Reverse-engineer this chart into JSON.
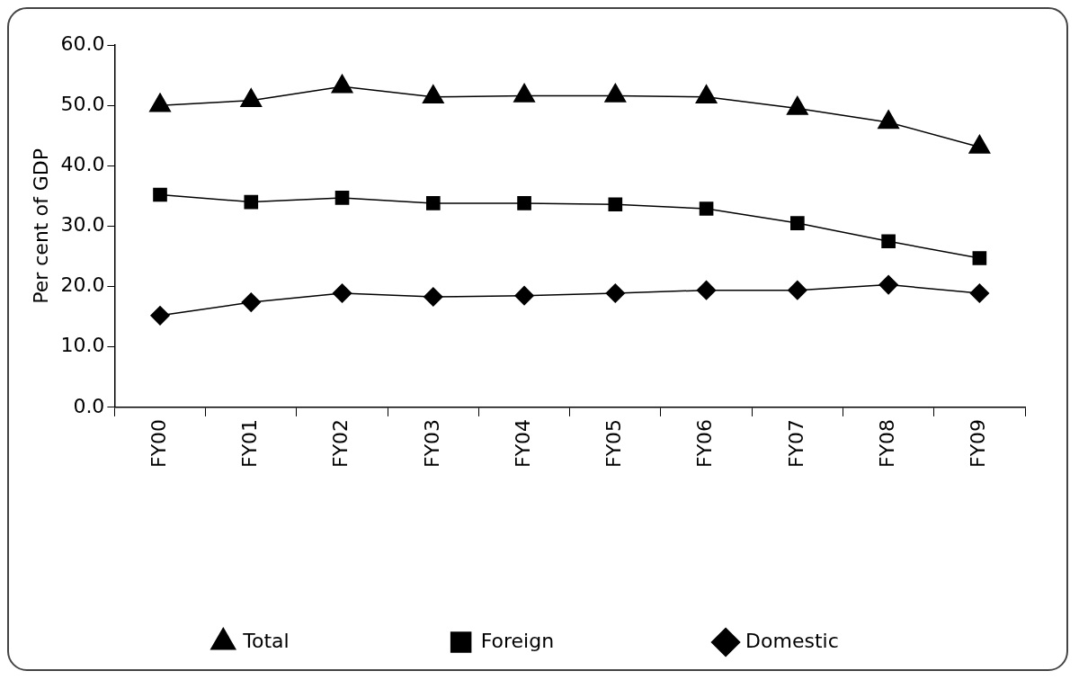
{
  "chart_data": {
    "type": "line",
    "ylabel": "Per cent of GDP",
    "categories": [
      "FY00",
      "FY01",
      "FY02",
      "FY03",
      "FY04",
      "FY05",
      "FY06",
      "FY07",
      "FY08",
      "FY09"
    ],
    "series": [
      {
        "name": "Total",
        "color": "#000000",
        "marker": "triangle",
        "values": [
          50.0,
          50.8,
          53.1,
          51.4,
          51.6,
          51.6,
          51.4,
          49.5,
          47.2,
          43.1
        ]
      },
      {
        "name": "Foreign",
        "color": "#000000",
        "marker": "square",
        "values": [
          35.2,
          34.0,
          34.7,
          33.8,
          33.8,
          33.6,
          32.9,
          30.5,
          27.5,
          24.7
        ]
      },
      {
        "name": "Domestic",
        "color": "#000000",
        "marker": "diamond",
        "values": [
          15.2,
          17.4,
          18.9,
          18.3,
          18.5,
          18.9,
          19.4,
          19.4,
          20.3,
          18.9
        ]
      }
    ],
    "ylim": [
      0,
      60
    ],
    "yticks": [
      {
        "value": 0,
        "label": "0.0"
      },
      {
        "value": 10,
        "label": "10.0"
      },
      {
        "value": 20,
        "label": "20.0"
      },
      {
        "value": 30,
        "label": "30.0"
      },
      {
        "value": 40,
        "label": "40.0"
      },
      {
        "value": 50,
        "label": "50.0"
      },
      {
        "value": 60,
        "label": "60.0"
      }
    ],
    "grid": false,
    "legend": "bottom",
    "line_style": "solid"
  }
}
